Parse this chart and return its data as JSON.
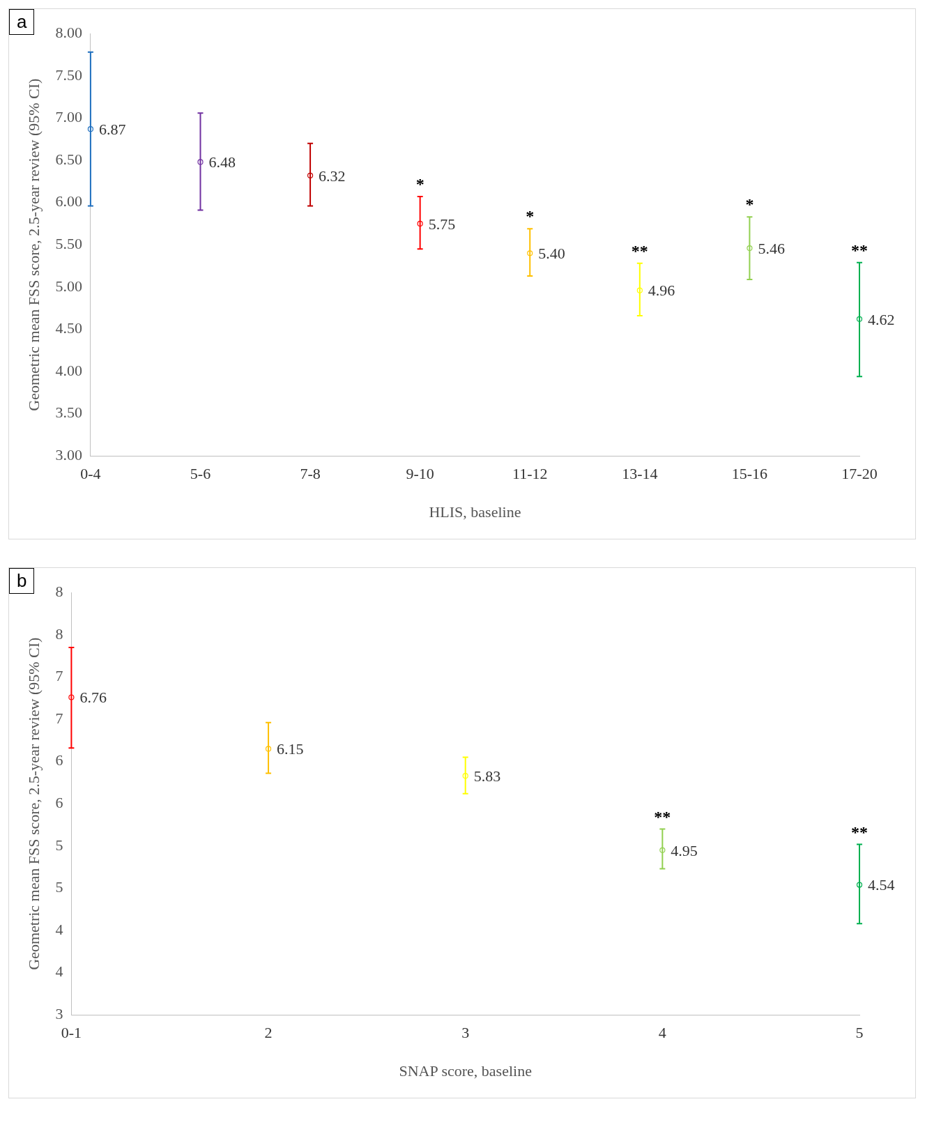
{
  "chart_data": [
    {
      "type": "scatter",
      "xlabel": "HLIS, baseline",
      "ylabel": "Geometric mean FSS score, 2.5-year review (95% CI)",
      "categories": [
        "0-4",
        "5-6",
        "7-8",
        "9-10",
        "11-12",
        "13-14",
        "15-16",
        "17-20"
      ],
      "series": [
        {
          "values": [
            6.87,
            6.48,
            6.32,
            5.75,
            5.4,
            4.96,
            5.46,
            4.62
          ],
          "colors": [
            "#1f6fbf",
            "#7030a0",
            "#c00000",
            "#ff0000",
            "#ffc000",
            "#ffff00",
            "#92d050",
            "#00b050"
          ],
          "errors": [
            [
              5.96,
              7.78
            ],
            [
              5.91,
              7.06
            ],
            [
              5.96,
              6.7
            ],
            [
              5.45,
              6.07
            ],
            [
              5.13,
              5.69
            ],
            [
              4.66,
              5.28
            ],
            [
              5.09,
              5.83
            ],
            [
              3.94,
              5.29
            ]
          ],
          "value_labels": [
            "6.87",
            "6.48",
            "6.32",
            "5.75",
            "5.40",
            "4.96",
            "5.46",
            "4.62"
          ]
        }
      ],
      "ylim": [
        3,
        8
      ],
      "yticks": [
        {
          "value": 3,
          "label": "3.00"
        },
        {
          "value": 3.5,
          "label": "3.50"
        },
        {
          "value": 4,
          "label": "4.00"
        },
        {
          "value": 4.5,
          "label": "4.50"
        },
        {
          "value": 5,
          "label": "5.00"
        },
        {
          "value": 5.5,
          "label": "5.50"
        },
        {
          "value": 6,
          "label": "6.00"
        },
        {
          "value": 6.5,
          "label": "6.50"
        },
        {
          "value": 7,
          "label": "7.00"
        },
        {
          "value": 7.5,
          "label": "7.50"
        },
        {
          "value": 8,
          "label": "8.00"
        }
      ],
      "grid": false,
      "legend": false,
      "marker": "circle",
      "annotations": [
        "a",
        {
          "text": "*",
          "x": "9-10",
          "y": 6.07
        },
        {
          "text": "*",
          "x": "11-12",
          "y": 5.69
        },
        {
          "text": "**",
          "x": "13-14",
          "y": 5.28
        },
        {
          "text": "*",
          "x": "15-16",
          "y": 5.83
        },
        {
          "text": "**",
          "x": "17-20",
          "y": 5.29
        }
      ]
    },
    {
      "type": "scatter",
      "xlabel": "SNAP score, baseline",
      "ylabel": "Geometric mean FSS score, 2.5-year review (95% CI)",
      "categories": [
        "0-1",
        "2",
        "3",
        "4",
        "5"
      ],
      "series": [
        {
          "values": [
            6.76,
            6.15,
            5.83,
            4.95,
            4.54
          ],
          "colors": [
            "#ff0000",
            "#ffc000",
            "#ffff00",
            "#92d050",
            "#00b050"
          ],
          "errors": [
            [
              6.16,
              7.35
            ],
            [
              5.86,
              6.46
            ],
            [
              5.62,
              6.05
            ],
            [
              4.73,
              5.2
            ],
            [
              4.08,
              5.02
            ]
          ],
          "value_labels": [
            "6.76",
            "6.15",
            "5.83",
            "4.95",
            "4.54"
          ]
        }
      ],
      "ylim": [
        3,
        8
      ],
      "yticks": [
        {
          "value": 3,
          "label": "3"
        },
        {
          "value": 3.5,
          "label": "4"
        },
        {
          "value": 4,
          "label": "4"
        },
        {
          "value": 4.5,
          "label": "5"
        },
        {
          "value": 5,
          "label": "5"
        },
        {
          "value": 5.5,
          "label": "6"
        },
        {
          "value": 6,
          "label": "6"
        },
        {
          "value": 6.5,
          "label": "7"
        },
        {
          "value": 7,
          "label": "7"
        },
        {
          "value": 7.5,
          "label": "8"
        },
        {
          "value": 8,
          "label": "8"
        }
      ],
      "grid": false,
      "legend": false,
      "marker": "circle",
      "annotations": [
        "b",
        {
          "text": "**",
          "x": "4",
          "y": 5.2
        },
        {
          "text": "**",
          "x": "5",
          "y": 5.02
        }
      ]
    }
  ]
}
